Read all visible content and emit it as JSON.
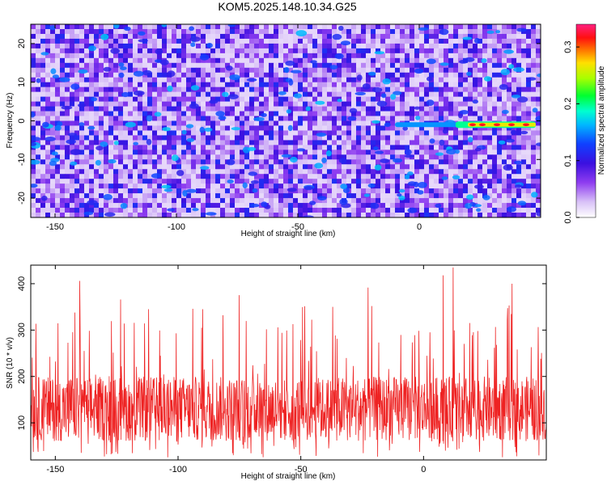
{
  "title": "KOM5.2025.148.10.34.G25",
  "colors": {
    "snr_line": "#ee2222",
    "frame": "#000000",
    "background": "#ffffff"
  },
  "chart_data": [
    {
      "type": "heatmap",
      "xlabel": "Height of straight line (km)",
      "ylabel": "Frequency (Hz)",
      "xlim": [
        -160,
        50
      ],
      "ylim": [
        -25,
        25
      ],
      "xticks": [
        -150,
        -100,
        -50,
        0
      ],
      "yticks": [
        -20,
        -10,
        0,
        10,
        20
      ],
      "colorbar": {
        "label": "Normalized spectral amplitude",
        "range": [
          0.0,
          0.34
        ],
        "ticks": [
          0.0,
          0.1,
          0.2,
          0.3
        ],
        "colormap": "rainbow (white-purple-blue-cyan-green-yellow-red-magenta)"
      },
      "features": {
        "background": "noise, mostly 0.02–0.08 (purple/white)",
        "signal_line": {
          "frequency_hz": -1,
          "x_range": [
            -10,
            48
          ],
          "peak_value": 0.3
        }
      }
    },
    {
      "type": "line",
      "xlabel": "Height of straight line (km)",
      "ylabel": "SNR (10 * v/v)",
      "xlim": [
        -160,
        50
      ],
      "ylim": [
        20,
        440
      ],
      "xticks": [
        -150,
        -100,
        -50,
        0
      ],
      "yticks": [
        100,
        200,
        300,
        400
      ],
      "series": [
        {
          "color": "#ee2222",
          "description": "dense noisy trace",
          "typical_range": [
            60,
            200
          ],
          "peaks": [
            {
              "x": -140,
              "y": 406
            },
            {
              "x": -112,
              "y": 345
            },
            {
              "x": -90,
              "y": 345
            },
            {
              "x": -37,
              "y": 350
            },
            {
              "x": 8,
              "y": 418
            },
            {
              "x": 12,
              "y": 435
            },
            {
              "x": 36,
              "y": 400
            }
          ]
        }
      ]
    }
  ],
  "top_axis_labels": {
    "xlabel_key": "chart_data.0.xlabel",
    "ylabel_key": "chart_data.0.ylabel"
  }
}
